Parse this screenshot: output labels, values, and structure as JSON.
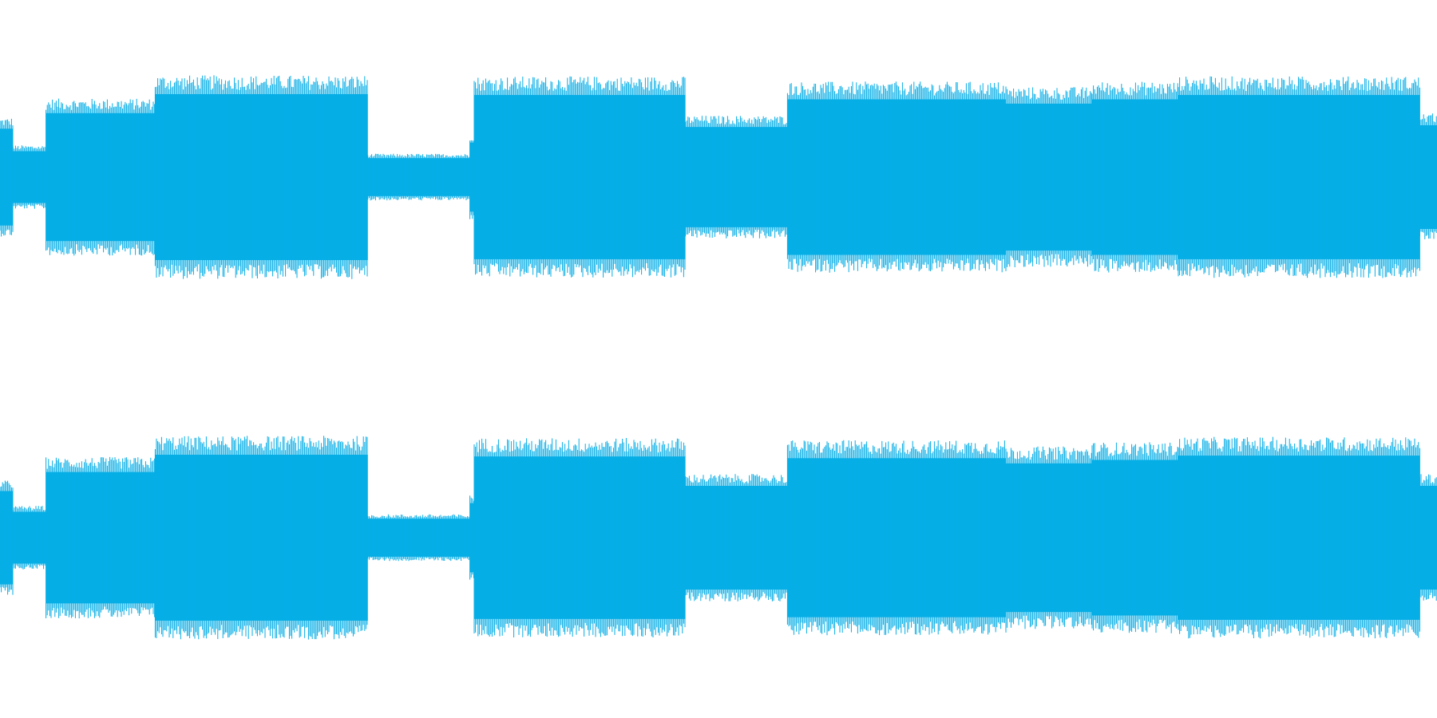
{
  "waveform": {
    "color": "#06aee6",
    "background": "#ffffff",
    "channels": [
      {
        "name": "channel-1",
        "segments": [
          {
            "start": 0.0,
            "end": 0.009,
            "level": 0.56
          },
          {
            "start": 0.009,
            "end": 0.032,
            "level": 0.3
          },
          {
            "start": 0.032,
            "end": 0.108,
            "level": 0.74
          },
          {
            "start": 0.108,
            "end": 0.256,
            "level": 0.96
          },
          {
            "start": 0.256,
            "end": 0.327,
            "level": 0.22
          },
          {
            "start": 0.327,
            "end": 0.33,
            "level": 0.4
          },
          {
            "start": 0.33,
            "end": 0.477,
            "level": 0.95
          },
          {
            "start": 0.477,
            "end": 0.548,
            "level": 0.58
          },
          {
            "start": 0.548,
            "end": 0.7,
            "level": 0.9
          },
          {
            "start": 0.7,
            "end": 0.76,
            "level": 0.85
          },
          {
            "start": 0.76,
            "end": 0.82,
            "level": 0.9
          },
          {
            "start": 0.82,
            "end": 0.988,
            "level": 0.95
          },
          {
            "start": 0.988,
            "end": 1.0,
            "level": 0.6
          }
        ]
      },
      {
        "name": "channel-2",
        "segments": [
          {
            "start": 0.0,
            "end": 0.009,
            "level": 0.54
          },
          {
            "start": 0.009,
            "end": 0.032,
            "level": 0.3
          },
          {
            "start": 0.032,
            "end": 0.108,
            "level": 0.76
          },
          {
            "start": 0.108,
            "end": 0.256,
            "level": 0.96
          },
          {
            "start": 0.256,
            "end": 0.327,
            "level": 0.22
          },
          {
            "start": 0.327,
            "end": 0.33,
            "level": 0.4
          },
          {
            "start": 0.33,
            "end": 0.477,
            "level": 0.94
          },
          {
            "start": 0.477,
            "end": 0.548,
            "level": 0.6
          },
          {
            "start": 0.548,
            "end": 0.7,
            "level": 0.92
          },
          {
            "start": 0.7,
            "end": 0.76,
            "level": 0.86
          },
          {
            "start": 0.76,
            "end": 0.82,
            "level": 0.9
          },
          {
            "start": 0.82,
            "end": 0.988,
            "level": 0.95
          },
          {
            "start": 0.988,
            "end": 1.0,
            "level": 0.6
          }
        ]
      }
    ]
  }
}
